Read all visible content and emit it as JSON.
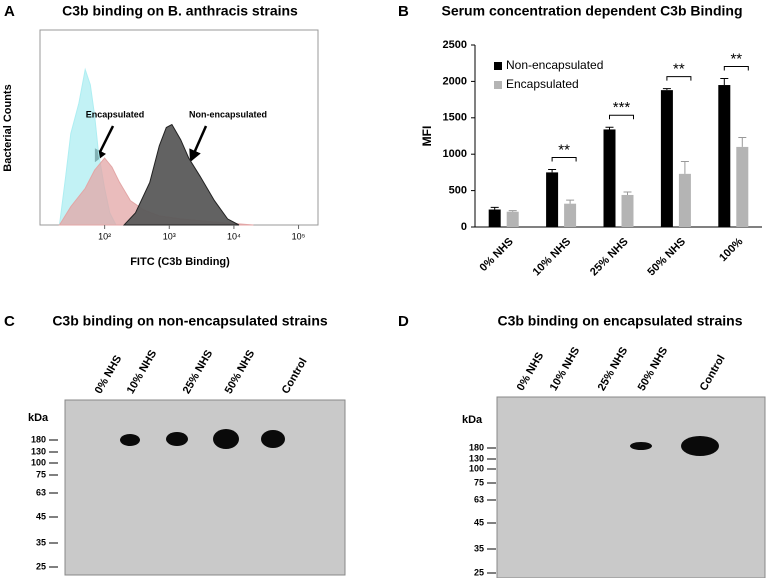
{
  "panel_labels": [
    "A",
    "B",
    "C",
    "D"
  ],
  "chart_data": [
    {
      "type": "histogram-overlay",
      "title": "C3b binding on B. anthracis strains",
      "x_label": "FITC (C3b Binding)",
      "y_label": "Bacterial Counts",
      "log_x": true,
      "xlim": [
        10,
        200000
      ],
      "ylim": [
        0,
        320
      ],
      "xticks": [
        {
          "value": 100,
          "label": "10²"
        },
        {
          "value": 1000,
          "label": "10³"
        },
        {
          "value": 10000,
          "label": "10⁴"
        },
        {
          "value": 100000,
          "label": "10⁵"
        }
      ],
      "annotations": [
        "Encapsulated",
        "Non-encapsulated"
      ],
      "series": [
        {
          "color": "#aeeef2",
          "x": [
            20,
            25,
            30,
            40,
            50,
            60,
            70,
            80,
            100,
            120,
            150
          ],
          "values": [
            0,
            80,
            150,
            200,
            255,
            230,
            180,
            120,
            60,
            20,
            0
          ]
        },
        {
          "color": "#e3a6a6",
          "x": [
            20,
            30,
            50,
            70,
            100,
            130,
            170,
            250,
            400,
            700,
            1500,
            5000,
            20000
          ],
          "values": [
            0,
            30,
            60,
            90,
            110,
            95,
            70,
            40,
            25,
            15,
            10,
            5,
            0
          ]
        },
        {
          "color": "#5a5a5a",
          "x": [
            200,
            300,
            500,
            700,
            900,
            1100,
            1500,
            2000,
            3000,
            5000,
            8000,
            12000
          ],
          "values": [
            0,
            20,
            70,
            130,
            160,
            165,
            140,
            110,
            80,
            40,
            10,
            0
          ]
        }
      ]
    },
    {
      "type": "bar",
      "title": "Serum concentration dependent C3b Binding",
      "y_label": "MFI",
      "categories": [
        "0% NHS",
        "10% NHS",
        "25% NHS",
        "50% NHS",
        "100%"
      ],
      "series": [
        {
          "name": "Non-encapsulated",
          "color": "#000000",
          "values": [
            240,
            750,
            1340,
            1880,
            1950
          ],
          "errors": [
            30,
            40,
            30,
            20,
            90
          ]
        },
        {
          "name": "Encapsulated",
          "color": "#b4b4b4",
          "values": [
            210,
            320,
            440,
            730,
            1100
          ],
          "errors": [
            15,
            50,
            40,
            170,
            130
          ]
        }
      ],
      "significance": [
        null,
        "**",
        "***",
        "**",
        "**"
      ],
      "ylim": [
        0,
        2500
      ],
      "yticks": [
        0,
        500,
        1000,
        1500,
        2000,
        2500
      ],
      "legend": "top-left"
    }
  ],
  "blots": [
    {
      "title": "C3b binding on non-encapsulated strains",
      "lanes": [
        "0% NHS",
        "10% NHS",
        "25% NHS",
        "50% NHS",
        "Control"
      ],
      "kda_label": "kDa",
      "markers": [
        "180",
        "130",
        "100",
        "75",
        "63",
        "45",
        "35",
        "25"
      ]
    },
    {
      "title": "C3b binding on encapsulated strains",
      "lanes": [
        "0% NHS",
        "10% NHS",
        "25% NHS",
        "50% NHS",
        "Control"
      ],
      "kda_label": "kDa",
      "markers": [
        "180",
        "130",
        "100",
        "75",
        "63",
        "45",
        "35",
        "25"
      ]
    }
  ]
}
